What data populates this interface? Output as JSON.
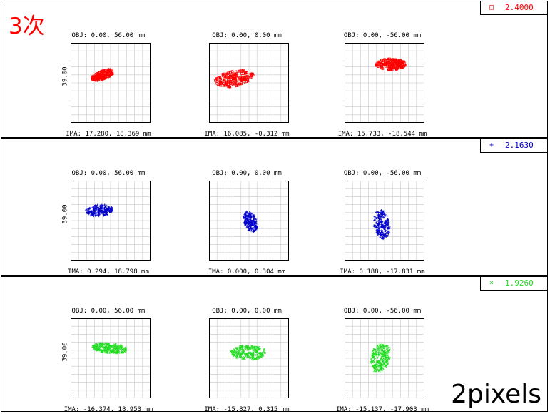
{
  "title": "3次",
  "footer": "2pixels",
  "scale_label": "39.00",
  "rows": [
    {
      "color": "#ff0000",
      "legend_symbol": "□",
      "legend_value": "2.4000",
      "cells": [
        {
          "obj": "OBJ: 0.00, 56.00 mm",
          "ima": "IMA: 17.280, 18.369 mm"
        },
        {
          "obj": "OBJ: 0.00, 0.00 mm",
          "ima": "IMA: 16.085, -0.312 mm"
        },
        {
          "obj": "OBJ: 0.00, -56.00 mm",
          "ima": "IMA: 15.733, -18.544 mm"
        }
      ]
    },
    {
      "color": "#0000cc",
      "legend_symbol": "+",
      "legend_value": "2.1630",
      "cells": [
        {
          "obj": "OBJ: 0.00, 56.00 mm",
          "ima": "IMA: 0.294, 18.798 mm"
        },
        {
          "obj": "OBJ: 0.00, 0.00 mm",
          "ima": "IMA: 0.000, 0.304 mm"
        },
        {
          "obj": "OBJ: 0.00, -56.00 mm",
          "ima": "IMA: 0.188, -17.831 mm"
        }
      ]
    },
    {
      "color": "#22dd22",
      "legend_symbol": "×",
      "legend_value": "1.9260",
      "cells": [
        {
          "obj": "OBJ: 0.00, 56.00 mm",
          "ima": "IMA: -16.374, 18.953 mm"
        },
        {
          "obj": "OBJ: 0.00, 0.00 mm",
          "ima": "IMA: -15.827, 0.315 mm"
        },
        {
          "obj": "OBJ: 0.00, -56.00 mm",
          "ima": "IMA: -15.137, -17.903 mm"
        }
      ]
    }
  ]
}
